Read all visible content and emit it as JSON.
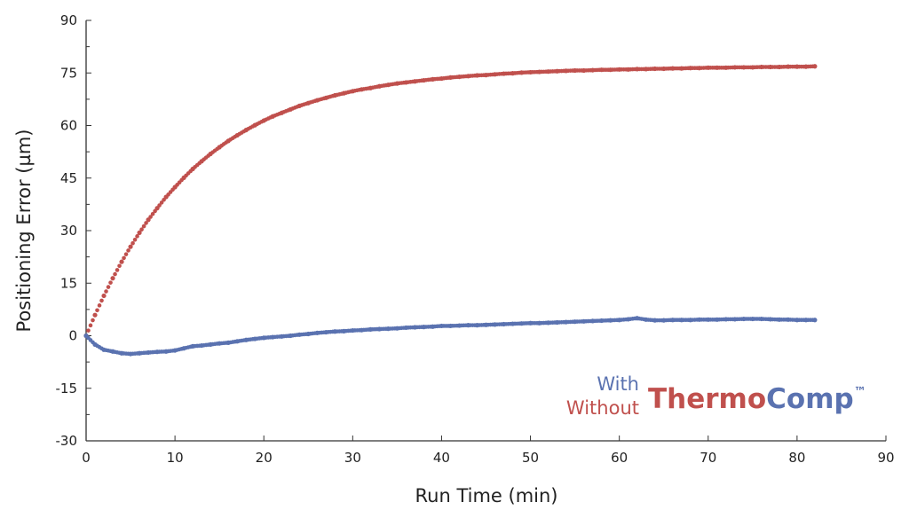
{
  "chart_data": {
    "type": "scatter",
    "xlabel": "Run Time (min)",
    "ylabel": "Positioning Error (µm)",
    "xlim": [
      0,
      90
    ],
    "ylim": [
      -30,
      90
    ],
    "xticks": [
      "0",
      "10",
      "20",
      "30",
      "40",
      "50",
      "60",
      "70",
      "80",
      "90"
    ],
    "yticks": [
      "-30",
      "-15",
      "0",
      "15",
      "30",
      "45",
      "60",
      "75",
      "90"
    ],
    "grid": false,
    "legend": {
      "placement": "bottom-right",
      "with_label": "With",
      "without_label": "Without",
      "brand_part1": "Thermo",
      "brand_part2": "Comp",
      "trademark": "™"
    },
    "x": [
      0,
      1,
      2,
      3,
      4,
      5,
      6,
      7,
      8,
      9,
      10,
      11,
      12,
      13,
      14,
      15,
      16,
      17,
      18,
      19,
      20,
      21,
      22,
      23,
      24,
      25,
      26,
      27,
      28,
      29,
      30,
      31,
      32,
      33,
      34,
      35,
      36,
      37,
      38,
      39,
      40,
      41,
      42,
      43,
      44,
      45,
      46,
      47,
      48,
      49,
      50,
      51,
      52,
      53,
      54,
      55,
      56,
      57,
      58,
      59,
      60,
      61,
      62,
      63,
      64,
      65,
      66,
      67,
      68,
      69,
      70,
      71,
      72,
      73,
      74,
      75,
      76,
      77,
      78,
      79,
      80,
      81,
      82
    ],
    "series": [
      {
        "name": "Without",
        "color": "#c0504d",
        "values": [
          0,
          5.9,
          11.4,
          16.4,
          21.1,
          25.4,
          29.4,
          33.1,
          36.4,
          39.6,
          42.4,
          45.1,
          47.6,
          49.8,
          51.9,
          53.8,
          55.6,
          57.2,
          58.7,
          60.1,
          61.4,
          62.6,
          63.6,
          64.6,
          65.6,
          66.4,
          67.2,
          67.9,
          68.6,
          69.2,
          69.8,
          70.3,
          70.7,
          71.2,
          71.6,
          72.0,
          72.3,
          72.6,
          72.9,
          73.2,
          73.4,
          73.7,
          73.9,
          74.1,
          74.3,
          74.4,
          74.6,
          74.8,
          74.9,
          75.1,
          75.2,
          75.3,
          75.4,
          75.5,
          75.6,
          75.7,
          75.7,
          75.8,
          75.9,
          75.9,
          76.0,
          76.0,
          76.1,
          76.1,
          76.2,
          76.2,
          76.3,
          76.3,
          76.4,
          76.4,
          76.5,
          76.5,
          76.5,
          76.6,
          76.6,
          76.6,
          76.7,
          76.7,
          76.7,
          76.8,
          76.8,
          76.8,
          76.9
        ]
      },
      {
        "name": "With",
        "color": "#5a72b0",
        "values": [
          0,
          -2.5,
          -4,
          -4.5,
          -5,
          -5.2,
          -5,
          -4.8,
          -4.6,
          -4.5,
          -4.2,
          -3.6,
          -3,
          -2.8,
          -2.5,
          -2.2,
          -2,
          -1.6,
          -1.2,
          -0.9,
          -0.6,
          -0.4,
          -0.2,
          0,
          0.3,
          0.5,
          0.8,
          1,
          1.2,
          1.3,
          1.5,
          1.6,
          1.8,
          1.9,
          2,
          2.1,
          2.3,
          2.4,
          2.5,
          2.6,
          2.8,
          2.8,
          2.9,
          3,
          3,
          3.1,
          3.2,
          3.3,
          3.4,
          3.5,
          3.6,
          3.6,
          3.7,
          3.8,
          3.9,
          4,
          4.1,
          4.2,
          4.3,
          4.4,
          4.5,
          4.7,
          5,
          4.6,
          4.4,
          4.4,
          4.5,
          4.5,
          4.5,
          4.6,
          4.6,
          4.6,
          4.7,
          4.7,
          4.8,
          4.8,
          4.8,
          4.7,
          4.6,
          4.6,
          4.5,
          4.5,
          4.5
        ]
      }
    ]
  }
}
